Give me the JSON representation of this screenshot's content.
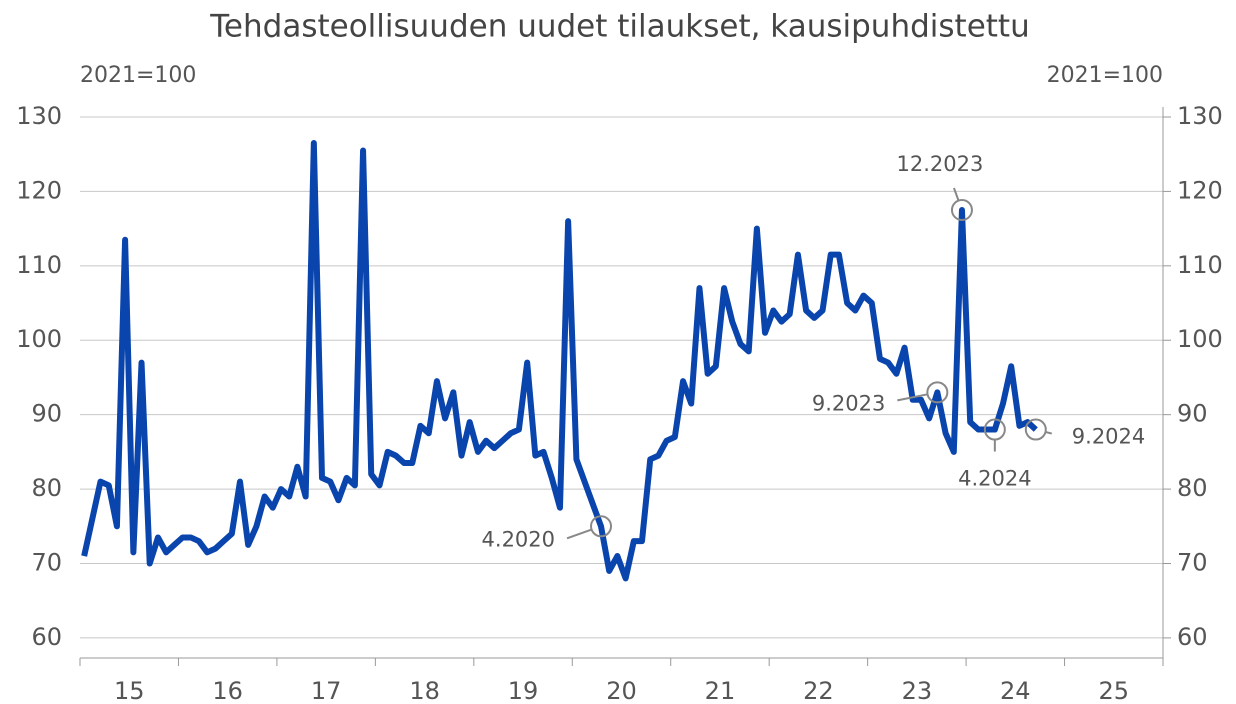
{
  "chart_data": {
    "type": "line",
    "title": "Tehdasteollisuuden uudet tilaukset, kausipuhdistettu",
    "ylabel": "2021=100",
    "y2label": "2021=100",
    "xlim": [
      15,
      26
    ],
    "xticks": [
      15,
      16,
      17,
      18,
      19,
      20,
      21,
      22,
      23,
      24,
      25,
      26
    ],
    "ylim": [
      57.3,
      130
    ],
    "yticks": [
      60,
      70,
      80,
      90,
      100,
      110,
      120,
      130
    ],
    "y2lim": [
      57.3,
      130
    ],
    "y2ticks": [
      60,
      70,
      80,
      90,
      100,
      110,
      120,
      130
    ],
    "grid": true,
    "x": [
      15.042,
      15.125,
      15.208,
      15.292,
      15.375,
      15.458,
      15.542,
      15.625,
      15.708,
      15.792,
      15.875,
      15.958,
      16.042,
      16.125,
      16.208,
      16.292,
      16.375,
      16.458,
      16.542,
      16.625,
      16.708,
      16.792,
      16.875,
      16.958,
      17.042,
      17.125,
      17.208,
      17.292,
      17.375,
      17.458,
      17.542,
      17.625,
      17.708,
      17.792,
      17.875,
      17.958,
      18.042,
      18.125,
      18.208,
      18.292,
      18.375,
      18.458,
      18.542,
      18.625,
      18.708,
      18.792,
      18.875,
      18.958,
      19.042,
      19.125,
      19.208,
      19.292,
      19.375,
      19.458,
      19.542,
      19.625,
      19.708,
      19.792,
      19.875,
      19.958,
      20.042,
      20.125,
      20.208,
      20.292,
      20.375,
      20.458,
      20.542,
      20.625,
      20.708,
      20.792,
      20.875,
      20.958,
      21.042,
      21.125,
      21.208,
      21.292,
      21.375,
      21.458,
      21.542,
      21.625,
      21.708,
      21.792,
      21.875,
      21.958,
      22.042,
      22.125,
      22.208,
      22.292,
      22.375,
      22.458,
      22.542,
      22.625,
      22.708,
      22.792,
      22.875,
      22.958,
      23.042,
      23.125,
      23.208,
      23.292,
      23.375,
      23.458,
      23.542,
      23.625,
      23.708,
      23.792,
      23.875,
      23.958,
      24.042,
      24.125,
      24.208,
      24.292,
      24.375,
      24.458,
      24.542,
      24.625,
      24.708
    ],
    "series": [
      {
        "name": "Uudet tilaukset",
        "color": "#0a45ad",
        "values": [
          71,
          76,
          81,
          80.5,
          75,
          113.5,
          71.5,
          97,
          70,
          73.5,
          71.5,
          72.5,
          73.5,
          73.5,
          73,
          71.5,
          72,
          73,
          74,
          81,
          72.5,
          75,
          79,
          77.5,
          80,
          79,
          83,
          79,
          126.5,
          81.5,
          81,
          78.5,
          81.5,
          80.5,
          125.5,
          82,
          80.5,
          85,
          84.5,
          83.5,
          83.5,
          88.5,
          87.5,
          94.5,
          89.5,
          93,
          84.5,
          89,
          85,
          86.5,
          85.5,
          86.5,
          87.5,
          88,
          97,
          84.5,
          85,
          81.5,
          77.5,
          116,
          84,
          81,
          78,
          75,
          69,
          71,
          68,
          73,
          73,
          84,
          84.5,
          86.5,
          87,
          94.5,
          91.5,
          107,
          95.5,
          96.5,
          107,
          102.5,
          99.5,
          98.5,
          115,
          101,
          104,
          102.5,
          103.5,
          111.5,
          104,
          103,
          104,
          111.5,
          111.5,
          105,
          104,
          106,
          105,
          97.5,
          97,
          95.5,
          99,
          92,
          92,
          89.5,
          93,
          87.5,
          85,
          117.5,
          89,
          88,
          88,
          88,
          91.5,
          96.5,
          88.5,
          89,
          88
        ]
      }
    ],
    "annotations": [
      {
        "text": "4.2020",
        "x": 20.292,
        "y": 75
      },
      {
        "text": "9.2023",
        "x": 23.708,
        "y": 93
      },
      {
        "text": "12.2023",
        "x": 23.958,
        "y": 117.5
      },
      {
        "text": "4.2024",
        "x": 24.292,
        "y": 88
      },
      {
        "text": "9.2024",
        "x": 24.708,
        "y": 88
      }
    ]
  }
}
